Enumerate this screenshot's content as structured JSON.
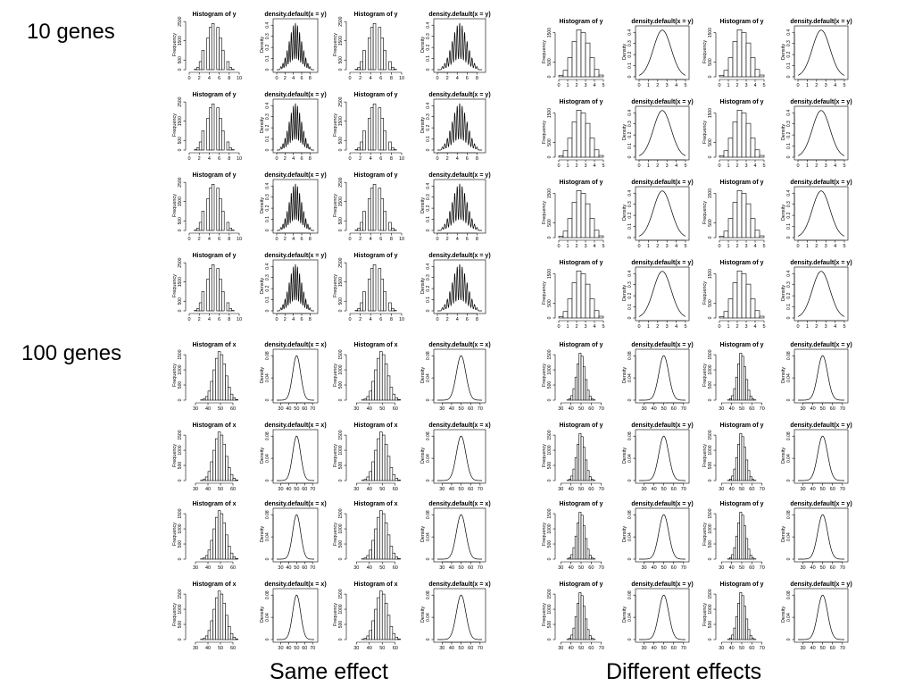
{
  "labels": {
    "ten_genes": "10 genes",
    "hundred_genes": "100 genes",
    "same_effect": "Same effect",
    "different_effects": "Different effects"
  },
  "text": {
    "hist_y": "Histogram of y",
    "hist_x": "Histogram of x",
    "dens_y": "density.default(x = y)",
    "dens_x": "density.default(x = x)",
    "frequency": "Frequency",
    "density": "Density"
  },
  "chart_data": [
    {
      "group": "10 genes / Same effect",
      "type": "bar",
      "title": "Histogram of y",
      "ylabel": "Frequency",
      "x_ticks": [
        0,
        2,
        4,
        6,
        8,
        10
      ],
      "y_ticks": [
        0,
        500,
        1500,
        2500
      ],
      "xlim": [
        0,
        10
      ],
      "ylim": [
        0,
        2600
      ],
      "bin_width": 0.5,
      "bins_start": 1.0,
      "values": [
        20,
        120,
        420,
        1000,
        0,
        1650,
        2200,
        2400,
        0,
        2200,
        1650,
        1000,
        0,
        420,
        120,
        20
      ]
    },
    {
      "group": "10 genes / Same effect",
      "type": "line",
      "title": "density.default(x = y)",
      "ylabel": "Density",
      "x_ticks": [
        0,
        2,
        4,
        6,
        8
      ],
      "y_ticks": [
        0.0,
        0.1,
        0.2,
        0.3,
        0.4
      ],
      "xlim": [
        0,
        9
      ],
      "ylim": [
        0,
        0.45
      ],
      "shape": "multimodal peaks at 1..8 spaced by 0.5, envelope normal (mean 4.5, sd 1.5), peak 0.42"
    },
    {
      "group": "10 genes / Different effects",
      "type": "bar",
      "title": "Histogram of y",
      "ylabel": "Frequency",
      "x_ticks": [
        0,
        1,
        2,
        3,
        4,
        5
      ],
      "y_ticks": [
        0,
        500,
        1500
      ],
      "xlim": [
        0,
        5
      ],
      "ylim": [
        0,
        1700
      ],
      "bin_width": 0.5,
      "bins_start": 0.0,
      "values": [
        50,
        220,
        650,
        1200,
        1600,
        1500,
        1150,
        650,
        250,
        60
      ]
    },
    {
      "group": "10 genes / Different effects",
      "type": "line",
      "title": "density.default(x = y)",
      "ylabel": "Density",
      "x_ticks": [
        0,
        1,
        2,
        3,
        4,
        5
      ],
      "y_ticks": [
        0.0,
        0.1,
        0.2,
        0.3,
        0.4
      ],
      "xlim": [
        0,
        5
      ],
      "ylim": [
        0,
        0.45
      ],
      "shape": "unimodal normal, mean 2.5, sd 0.95, peak 0.42"
    },
    {
      "group": "100 genes / Same effect",
      "type": "bar",
      "title": "Histogram of x",
      "ylabel": "Frequency",
      "x_ticks": [
        30,
        40,
        50,
        60
      ],
      "y_ticks": [
        0,
        500,
        1000,
        1500
      ],
      "xlim": [
        25,
        65
      ],
      "ylim": [
        0,
        1650
      ],
      "bin_width": 2,
      "bins_start": 34,
      "values": [
        10,
        40,
        120,
        300,
        620,
        1000,
        1380,
        1600,
        1500,
        1200,
        800,
        430,
        200,
        80,
        20
      ]
    },
    {
      "group": "100 genes / Same effect",
      "type": "line",
      "title": "density.default(x = x)",
      "ylabel": "Density",
      "x_ticks": [
        30,
        40,
        50,
        60,
        70
      ],
      "y_ticks": [
        0.0,
        0.04,
        0.08
      ],
      "xlim": [
        25,
        72
      ],
      "ylim": [
        0,
        0.09
      ],
      "shape": "unimodal normal, mean 50, sd 5, peak 0.08"
    },
    {
      "group": "100 genes / Different effects",
      "type": "bar",
      "title": "Histogram of y",
      "ylabel": "Frequency",
      "x_ticks": [
        30,
        40,
        50,
        60,
        70
      ],
      "y_ticks": [
        0,
        500,
        1000,
        1500
      ],
      "xlim": [
        28,
        72
      ],
      "ylim": [
        0,
        1650
      ],
      "bin_width": 2,
      "bins_start": 36,
      "values": [
        10,
        50,
        150,
        380,
        760,
        1200,
        1550,
        1450,
        1100,
        680,
        330,
        130,
        40,
        10
      ]
    },
    {
      "group": "100 genes / Different effects",
      "type": "line",
      "title": "density.default(x = y)",
      "ylabel": "Density",
      "x_ticks": [
        30,
        40,
        50,
        60,
        70
      ],
      "y_ticks": [
        0.0,
        0.04,
        0.08
      ],
      "xlim": [
        25,
        72
      ],
      "ylim": [
        0,
        0.09
      ],
      "shape": "unimodal normal, mean 50, sd 5, peak 0.08"
    }
  ]
}
